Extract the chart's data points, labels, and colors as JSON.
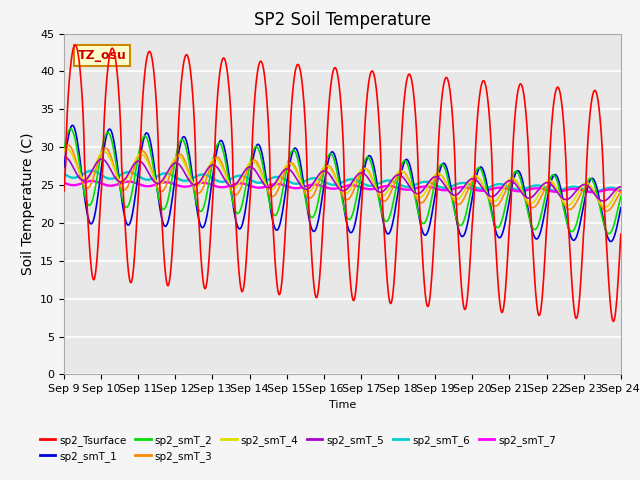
{
  "title": "SP2 Soil Temperature",
  "xlabel": "Time",
  "ylabel": "Soil Temperature (C)",
  "ylim": [
    0,
    45
  ],
  "tz_label": "TZ_osu",
  "x_tick_labels": [
    "Sep 9",
    "Sep 10",
    "Sep 11",
    "Sep 12",
    "Sep 13",
    "Sep 14",
    "Sep 15",
    "Sep 16",
    "Sep 17",
    "Sep 18",
    "Sep 19",
    "Sep 20",
    "Sep 21",
    "Sep 22",
    "Sep 23",
    "Sep 24"
  ],
  "series_colors": {
    "sp2_Tsurface": "#ff0000",
    "sp2_smT_1": "#0000dd",
    "sp2_smT_2": "#00dd00",
    "sp2_smT_3": "#ff8800",
    "sp2_smT_4": "#dddd00",
    "sp2_smT_5": "#aa00cc",
    "sp2_smT_6": "#00cccc",
    "sp2_smT_7": "#ff00ff"
  },
  "plot_bg_color": "#e8e8e8",
  "title_fontsize": 12,
  "axis_fontsize": 10,
  "tick_fontsize": 8
}
